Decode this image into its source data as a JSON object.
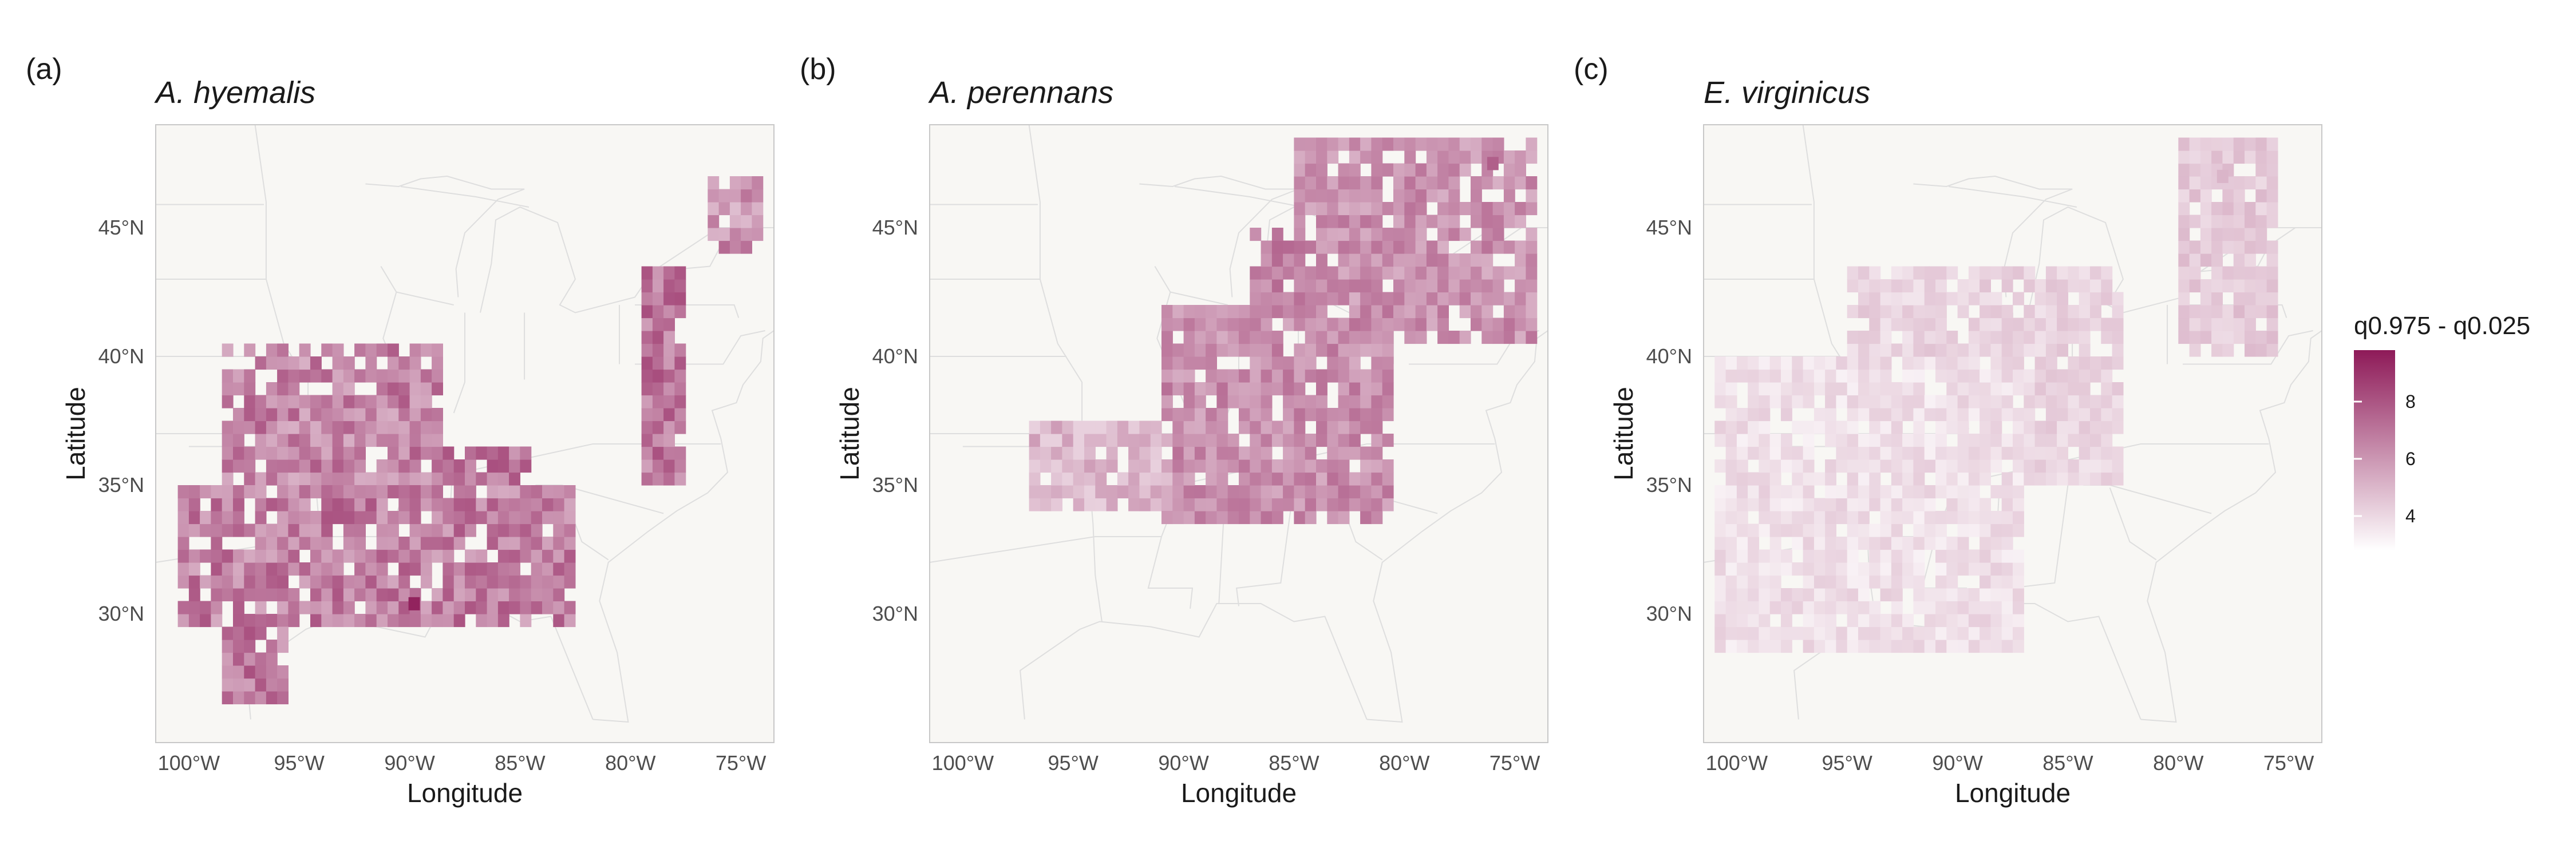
{
  "panels": [
    {
      "letter": "(a)",
      "species": "A. hyemalis"
    },
    {
      "letter": "(b)",
      "species": "A. perennans"
    },
    {
      "letter": "(c)",
      "species": "E. virginicus"
    }
  ],
  "axes": {
    "xlabel": "Longitude",
    "ylabel": "Latitude",
    "x_ticks": [
      {
        "lon": -100,
        "label": "100°W"
      },
      {
        "lon": -95,
        "label": "95°W"
      },
      {
        "lon": -90,
        "label": "90°W"
      },
      {
        "lon": -85,
        "label": "85°W"
      },
      {
        "lon": -80,
        "label": "80°W"
      },
      {
        "lon": -75,
        "label": "75°W"
      }
    ],
    "y_ticks": [
      {
        "lat": 30,
        "label": "30°N"
      },
      {
        "lat": 35,
        "label": "35°N"
      },
      {
        "lat": 40,
        "label": "40°N"
      },
      {
        "lat": 45,
        "label": "45°N"
      }
    ]
  },
  "legend": {
    "title": "q0.975 - q0.025",
    "ticks": [
      {
        "value": 4,
        "label": "4"
      },
      {
        "value": 6,
        "label": "6"
      },
      {
        "value": 8,
        "label": "8"
      }
    ],
    "range": [
      2.8,
      9.8
    ],
    "color_low": "#ffffff",
    "color_high": "#8e1a58"
  },
  "colors": {
    "map_background": "#f8f7f4",
    "map_border": "#c8c8c8",
    "state_lines": "#dedede"
  },
  "chart_data": {
    "type": "heatmap",
    "x_range": [
      -101.5,
      -73.5
    ],
    "y_range": [
      25,
      49
    ],
    "grid_cell_degrees": 0.5,
    "value_name": "q0.975 - q0.025",
    "panels": [
      {
        "species": "A. hyemalis",
        "value_range": [
          4.5,
          9.5
        ],
        "regions": [
          {
            "lon": [
              -98.5,
              -88.5
            ],
            "lat": [
              35.0,
              40.5
            ],
            "mean": 6.3
          },
          {
            "lon": [
              -100.5,
              -82.5
            ],
            "lat": [
              29.5,
              35.0
            ],
            "mean": 6.5
          },
          {
            "lon": [
              -98.5,
              -95.5
            ],
            "lat": [
              26.5,
              29.5
            ],
            "mean": 6.6
          },
          {
            "lon": [
              -88.5,
              -84.5
            ],
            "lat": [
              29.5,
              36.5
            ],
            "mean": 6.9
          },
          {
            "lon": [
              -79.5,
              -77.5
            ],
            "lat": [
              35.0,
              43.5
            ],
            "mean": 6.8
          },
          {
            "lon": [
              -76.5,
              -74.0
            ],
            "lat": [
              44.0,
              47.0
            ],
            "mean": 5.8
          }
        ],
        "peak": {
          "lon": -89.8,
          "lat": 30.4,
          "value": 9.5
        }
      },
      {
        "species": "A. perennans",
        "value_range": [
          4.0,
          7.5
        ],
        "regions": [
          {
            "lon": [
              -97.0,
              -90.5
            ],
            "lat": [
              34.0,
              37.5
            ],
            "mean": 4.6
          },
          {
            "lon": [
              -91.0,
              -80.5
            ],
            "lat": [
              33.5,
              42.0
            ],
            "mean": 6.0
          },
          {
            "lon": [
              -87.0,
              -84.0
            ],
            "lat": [
              42.0,
              44.8
            ],
            "mean": 6.3
          },
          {
            "lon": [
              -85.0,
              -74.0
            ],
            "lat": [
              40.5,
              48.5
            ],
            "mean": 5.9
          }
        ],
        "peak": {
          "lon": -76.0,
          "lat": 47.5,
          "value": 7.5
        }
      },
      {
        "species": "E. virginicus",
        "value_range": [
          3.0,
          4.8
        ],
        "regions": [
          {
            "lon": [
              -101.0,
              -87.0
            ],
            "lat": [
              28.5,
              40.0
            ],
            "mean": 3.6
          },
          {
            "lon": [
              -95.0,
              -82.5
            ],
            "lat": [
              35.0,
              43.5
            ],
            "mean": 3.9
          },
          {
            "lon": [
              -80.0,
              -75.5
            ],
            "lat": [
              40.0,
              48.5
            ],
            "mean": 4.2
          }
        ],
        "peak": {
          "lon": -78.0,
          "lat": 47.0,
          "value": 4.8
        }
      }
    ]
  }
}
